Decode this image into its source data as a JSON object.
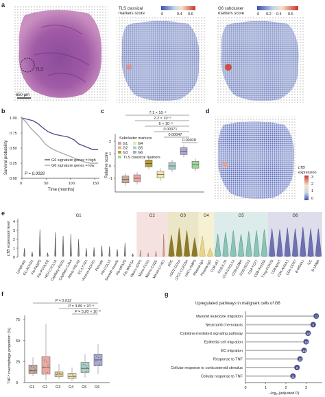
{
  "panel_labels": [
    "a",
    "b",
    "c",
    "d",
    "e",
    "f",
    "g"
  ],
  "panel_a": {
    "tls_label": "TLS",
    "scalebar_label": "650 µm",
    "map1_title": "TLS classical\nmarkers score",
    "map2_title": "G6 subcluster\nmarkers score",
    "colorbar_ticks": [
      "0",
      "0.4",
      "0.6"
    ],
    "colorbar2_ticks": [
      "0",
      "0.2",
      "0.4",
      "0.6"
    ]
  },
  "panel_b": {
    "chart_data": {
      "type": "line",
      "ylabel": "Survival probability",
      "xlabel": "Time (months)",
      "x_ticks": [
        0,
        50,
        100,
        150
      ],
      "y_ticks": [
        0,
        0.25,
        0.5,
        0.75,
        1.0
      ],
      "p_value": "P = 0.0028",
      "series": [
        {
          "name": "G6 signature genes = high",
          "color": "#4a4f8c"
        },
        {
          "name": "G6 signature genes = low",
          "color": "#a9a9a9"
        }
      ]
    }
  },
  "panel_c": {
    "chart_data": {
      "type": "box",
      "ylabel": "Relative score",
      "y_ticks": [
        -1,
        0,
        1,
        2
      ],
      "categories": [
        "G1",
        "G2",
        "G3",
        "G4",
        "G5",
        "G6",
        "TLS"
      ],
      "legend_title": "Subcluster markers",
      "legend": [
        "G1",
        "G4",
        "G2",
        "G5",
        "G3",
        "G6"
      ],
      "legend_extra": "TLS classical markers",
      "medians": [
        -1.1,
        -1.0,
        0.2,
        -0.7,
        0.0,
        1.2,
        0.1
      ],
      "pvals": [
        "7.1 × 10⁻⁶",
        "2.2 × 10⁻⁵",
        "6 × 10⁻⁵",
        "0.00071",
        "0.00047",
        "0.00028"
      ]
    }
  },
  "panel_d": {
    "colorbar_title": "LTB\nexpression",
    "colorbar_ticks": [
      "3",
      "2",
      "1",
      "0"
    ]
  },
  "panel_e": {
    "chart_data": {
      "type": "violin",
      "ylabel": "LTB expression level",
      "groups": [
        {
          "name": "G1",
          "color": "#ffffff"
        },
        {
          "name": "G2",
          "color": "#f6e1e1"
        },
        {
          "name": "G3",
          "color": "#ece6c8"
        },
        {
          "name": "G4",
          "color": "#f7f1d3"
        },
        {
          "name": "G5",
          "color": "#dcecea"
        },
        {
          "name": "G6",
          "color": "#ddddeb"
        }
      ],
      "categories": [
        "Lymphatic",
        "EC-ACKR1",
        "Fib-FABP5",
        "Fib-PCOLCE",
        "HEV-CXCL10",
        "Capillary-RGS5",
        "Capillary-GJA4",
        "Artery-FBLN2",
        "EC-LYVE1",
        "Venous-ACKR1",
        "Pericyte",
        "Fib-COL15",
        "Smooth muscle",
        "Fib-MFAP5",
        "Fib-WNT5A",
        "Macro-SPP1",
        "Mono-FCN1",
        "Macro-C1QC",
        "Macro-LYVE1",
        "pDC",
        "cDC2-CD1A",
        "cDC1-CLEC9A",
        "cDC-LAMP3",
        "Plasma-IgA",
        "Plasma-IgG",
        "CD8-γδT",
        "CD8-IL7R",
        "CD4-CXCL13",
        "CD8-GZMK",
        "CD8-ISG15",
        "CD4-TCF7",
        "CD8-ISG15b",
        "T reg-FOXP3",
        "CD8-MAIT",
        "CD4-ANXA1",
        "CD4-CCR7",
        "B-MS4A1",
        "ILC",
        "B-LRMP"
      ],
      "category_groups": [
        0,
        0,
        0,
        0,
        0,
        0,
        0,
        0,
        0,
        0,
        0,
        0,
        0,
        0,
        0,
        1,
        1,
        1,
        1,
        2,
        2,
        2,
        2,
        3,
        3,
        4,
        4,
        4,
        4,
        4,
        4,
        4,
        5,
        5,
        5,
        5,
        5,
        5,
        5
      ],
      "heights": [
        1.0,
        0.6,
        3.1,
        0.5,
        2.8,
        2.4,
        2.6,
        2.0,
        1.0,
        1.1,
        1.3,
        1.2,
        0.9,
        1.6,
        0.4,
        0.8,
        0.5,
        0.7,
        2.6,
        2.5,
        3.3,
        3.0,
        2.2,
        2.4,
        1.0,
        2.6,
        2.8,
        3.0,
        2.6,
        2.9,
        3.0,
        3.1,
        3.2,
        3.1,
        3.3,
        3.2,
        3.4,
        3.2,
        3.2
      ],
      "y_ticks": [
        0,
        1,
        2,
        3,
        4
      ]
    }
  },
  "panel_f": {
    "chart_data": {
      "type": "box",
      "ylabel": "TNF⁺ macrophage proportion (%)",
      "categories": [
        "G1",
        "G2",
        "G3",
        "G4",
        "G5",
        "G6"
      ],
      "colors": [
        "#c9a99b",
        "#e8a9a1",
        "#e7d08c",
        "#f1e5a8",
        "#a6cfc7",
        "#a9a9d3"
      ],
      "medians": [
        14,
        18,
        10,
        7,
        17,
        27
      ],
      "q1": [
        11,
        10,
        7,
        5,
        12,
        20
      ],
      "q3": [
        21,
        31,
        13,
        11,
        24,
        34
      ],
      "min": [
        8,
        3,
        4,
        2,
        6,
        10
      ],
      "max": [
        30,
        70,
        22,
        18,
        34,
        46
      ],
      "y_ticks": [
        0,
        25,
        50,
        75
      ],
      "ylim": [
        0,
        80
      ],
      "pvals": [
        "P = 0.013",
        "P = 3.89 × 10⁻⁵",
        "P = 5.20 × 10⁻⁵"
      ]
    }
  },
  "panel_g": {
    "chart_data": {
      "type": "lollipop",
      "title": "Upregulated pathways in malignant cells of G6",
      "xlabel": "−log₁₀(adjusted P)",
      "x_ticks": [
        0,
        1,
        2,
        3
      ],
      "pathways": [
        {
          "label": "Myeloid leukocyte migration",
          "value": 3.5,
          "count": "13"
        },
        {
          "label": "Neutrophil chemotaxis",
          "value": 3.35,
          "count": "9"
        },
        {
          "label": "Cytokine-mediated signaling pathway",
          "value": 3.1,
          "count": "18"
        },
        {
          "label": "Epithelial cell migration",
          "value": 3.0,
          "count": "16"
        },
        {
          "label": "EC migration",
          "value": 2.9,
          "count": "14"
        },
        {
          "label": "Response to TNF",
          "value": 2.7,
          "count": "12"
        },
        {
          "label": "Cellular response to corticosteroid stimulus",
          "value": 2.55,
          "count": "9"
        },
        {
          "label": "Cellular response to TNF",
          "value": 2.35,
          "count": "11"
        }
      ]
    }
  }
}
